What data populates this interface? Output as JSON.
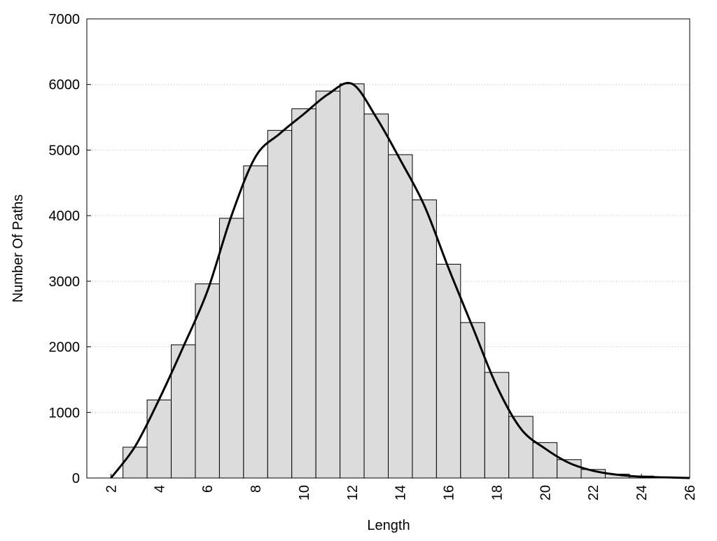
{
  "chart_data": {
    "type": "histogram",
    "xlabel": "Length",
    "ylabel": "Number Of Paths",
    "bins": [
      2.5,
      3.5,
      4.5,
      5.5,
      6.5,
      7.5,
      8.5,
      9.5,
      10.5,
      11.5,
      12.5,
      13.5,
      14.5,
      15.5,
      16.5,
      17.5,
      18.5,
      19.5,
      20.5,
      21.5,
      22.5,
      23.5,
      24.5,
      25.5
    ],
    "values": [
      470,
      1190,
      2030,
      2960,
      3960,
      4760,
      5300,
      5630,
      5900,
      6010,
      5550,
      4930,
      4240,
      3260,
      2370,
      1610,
      940,
      540,
      280,
      130,
      60,
      30,
      10
    ],
    "color": "#dcdcdc",
    "line": {
      "x": [
        2,
        3,
        4,
        5,
        6,
        7,
        8,
        9,
        10,
        11,
        12,
        13,
        14,
        15,
        16,
        17,
        18,
        19,
        20,
        21,
        22,
        23,
        24,
        25,
        26
      ],
      "values": [
        0,
        480,
        1200,
        2000,
        2850,
        4000,
        4900,
        5250,
        5550,
        5850,
        6010,
        5500,
        4850,
        4150,
        3200,
        2300,
        1400,
        750,
        450,
        230,
        110,
        50,
        20,
        10,
        0
      ],
      "color": "#000000"
    },
    "xlim": [
      1,
      26
    ],
    "ylim": [
      0,
      7000
    ],
    "xticks": [
      2,
      4,
      6,
      8,
      10,
      12,
      14,
      16,
      18,
      20,
      22,
      24,
      26
    ],
    "yticks": [
      0,
      1000,
      2000,
      3000,
      4000,
      5000,
      6000,
      7000
    ],
    "grid": true
  }
}
